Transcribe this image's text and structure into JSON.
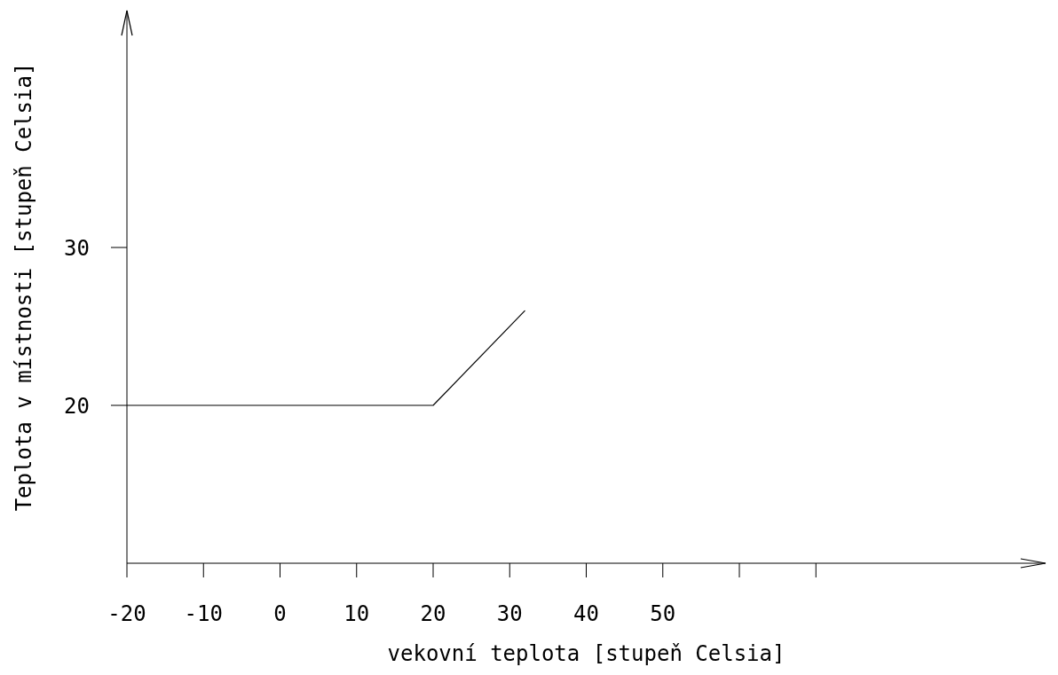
{
  "chart_data": {
    "type": "line",
    "xlabel": "vekovní teplota [stupeň Celsia]",
    "ylabel": "Teplota v místnosti [stupeň Celsia]",
    "x": [
      -20,
      20,
      32
    ],
    "series": [
      {
        "color": "#000000",
        "values": [
          20,
          20,
          26
        ]
      }
    ],
    "xlim": [
      -20,
      100
    ],
    "ylim": [
      10,
      45
    ],
    "xticks": [
      -20,
      -10,
      0,
      10,
      20,
      30,
      40,
      50,
      {
        "value": 60,
        "label": null
      },
      {
        "value": 70,
        "label": null
      }
    ],
    "yticks": [
      20,
      30
    ],
    "grid": false,
    "legend": false,
    "marker": "none",
    "line_style": "solid"
  }
}
